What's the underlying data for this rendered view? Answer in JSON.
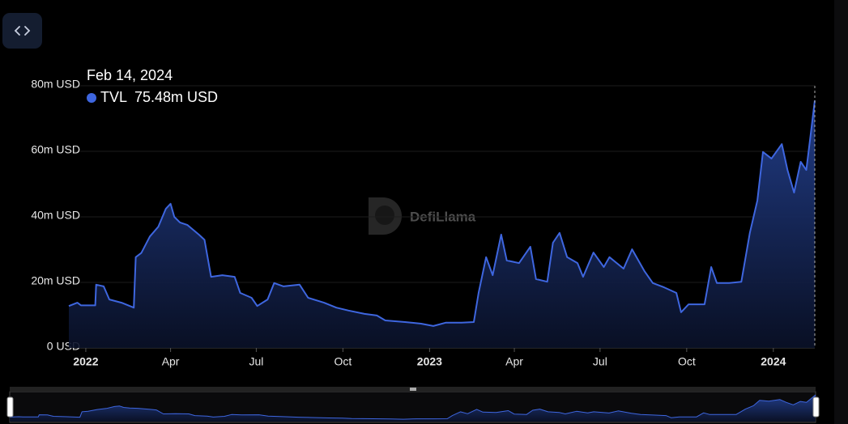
{
  "chart_data": {
    "type": "area",
    "tooltip": {
      "date": "Feb 14, 2024",
      "series": "TVL",
      "value": "75.48m USD"
    },
    "watermark": "DefiLlama",
    "x": [
      "2021-12-14",
      "2021-12-23",
      "2021-12-27",
      "2022-01-11",
      "2022-01-12",
      "2022-01-20",
      "2022-01-26",
      "2022-02-08",
      "2022-02-21",
      "2022-02-23",
      "2022-03-01",
      "2022-03-10",
      "2022-03-19",
      "2022-03-27",
      "2022-04-01",
      "2022-04-05",
      "2022-04-11",
      "2022-04-19",
      "2022-05-01",
      "2022-05-07",
      "2022-05-14",
      "2022-05-26",
      "2022-06-08",
      "2022-06-14",
      "2022-06-26",
      "2022-07-02",
      "2022-07-13",
      "2022-07-20",
      "2022-07-30",
      "2022-08-16",
      "2022-08-25",
      "2022-09-11",
      "2022-09-24",
      "2022-10-07",
      "2022-10-24",
      "2022-11-06",
      "2022-11-15",
      "2022-12-06",
      "2022-12-23",
      "2023-01-05",
      "2023-01-18",
      "2023-02-04",
      "2023-02-17",
      "2023-02-22",
      "2023-03-02",
      "2023-03-09",
      "2023-03-18",
      "2023-03-24",
      "2023-04-06",
      "2023-04-18",
      "2023-04-24",
      "2023-05-06",
      "2023-05-12",
      "2023-05-19",
      "2023-05-27",
      "2023-06-07",
      "2023-06-13",
      "2023-06-24",
      "2023-07-05",
      "2023-07-11",
      "2023-07-26",
      "2023-08-04",
      "2023-08-17",
      "2023-08-26",
      "2023-09-07",
      "2023-09-20",
      "2023-09-25",
      "2023-10-03",
      "2023-10-20",
      "2023-10-27",
      "2023-11-02",
      "2023-11-15",
      "2023-11-28",
      "2023-12-07",
      "2023-12-15",
      "2023-12-21",
      "2023-12-30",
      "2024-01-10",
      "2024-01-16",
      "2024-01-23",
      "2024-01-30",
      "2024-02-05",
      "2024-02-09",
      "2024-02-14"
    ],
    "series": [
      {
        "name": "TVL",
        "color": "#3e66df",
        "values": [
          12800000,
          13800000,
          13000000,
          13000000,
          19300000,
          18800000,
          14800000,
          13800000,
          12300000,
          27700000,
          29000000,
          34000000,
          37000000,
          42500000,
          44000000,
          40000000,
          38300000,
          37500000,
          34600000,
          33000000,
          21700000,
          22200000,
          21700000,
          16800000,
          15300000,
          12800000,
          14800000,
          19800000,
          18800000,
          19300000,
          15300000,
          13800000,
          12300000,
          11400000,
          10400000,
          9900000,
          8400000,
          7900000,
          7400000,
          6700000,
          7700000,
          7700000,
          7900000,
          16800000,
          27700000,
          22200000,
          34600000,
          26700000,
          25900000,
          30900000,
          21000000,
          20200000,
          32100000,
          35100000,
          27700000,
          25900000,
          21700000,
          29100000,
          24700000,
          27700000,
          24200000,
          30100000,
          23500000,
          19800000,
          18500000,
          16800000,
          10900000,
          13300000,
          13300000,
          24700000,
          19800000,
          19800000,
          20200000,
          35100000,
          45000000,
          59800000,
          57800000,
          62200000,
          54300000,
          47400000,
          56800000,
          54300000,
          63700000,
          75480000
        ]
      }
    ],
    "xlim": [
      "2021-12-14",
      "2024-02-14"
    ],
    "xticks": [
      {
        "value": "2022-01-01",
        "label": "2022"
      },
      {
        "value": "2022-04-01",
        "label": "Apr"
      },
      {
        "value": "2022-07-01",
        "label": "Jul"
      },
      {
        "value": "2022-10-01",
        "label": "Oct"
      },
      {
        "value": "2023-01-01",
        "label": "2023"
      },
      {
        "value": "2023-04-01",
        "label": "Apr"
      },
      {
        "value": "2023-07-01",
        "label": "Jul"
      },
      {
        "value": "2023-10-01",
        "label": "Oct"
      },
      {
        "value": "2024-01-01",
        "label": "2024"
      }
    ],
    "ylim": [
      0,
      80000000
    ],
    "yticks": [
      {
        "value": 0,
        "label": "0 USD"
      },
      {
        "value": 20000000,
        "label": "20m USD"
      },
      {
        "value": 40000000,
        "label": "40m USD"
      },
      {
        "value": 60000000,
        "label": "60m USD"
      },
      {
        "value": 80000000,
        "label": "80m USD"
      }
    ],
    "grid": true
  }
}
